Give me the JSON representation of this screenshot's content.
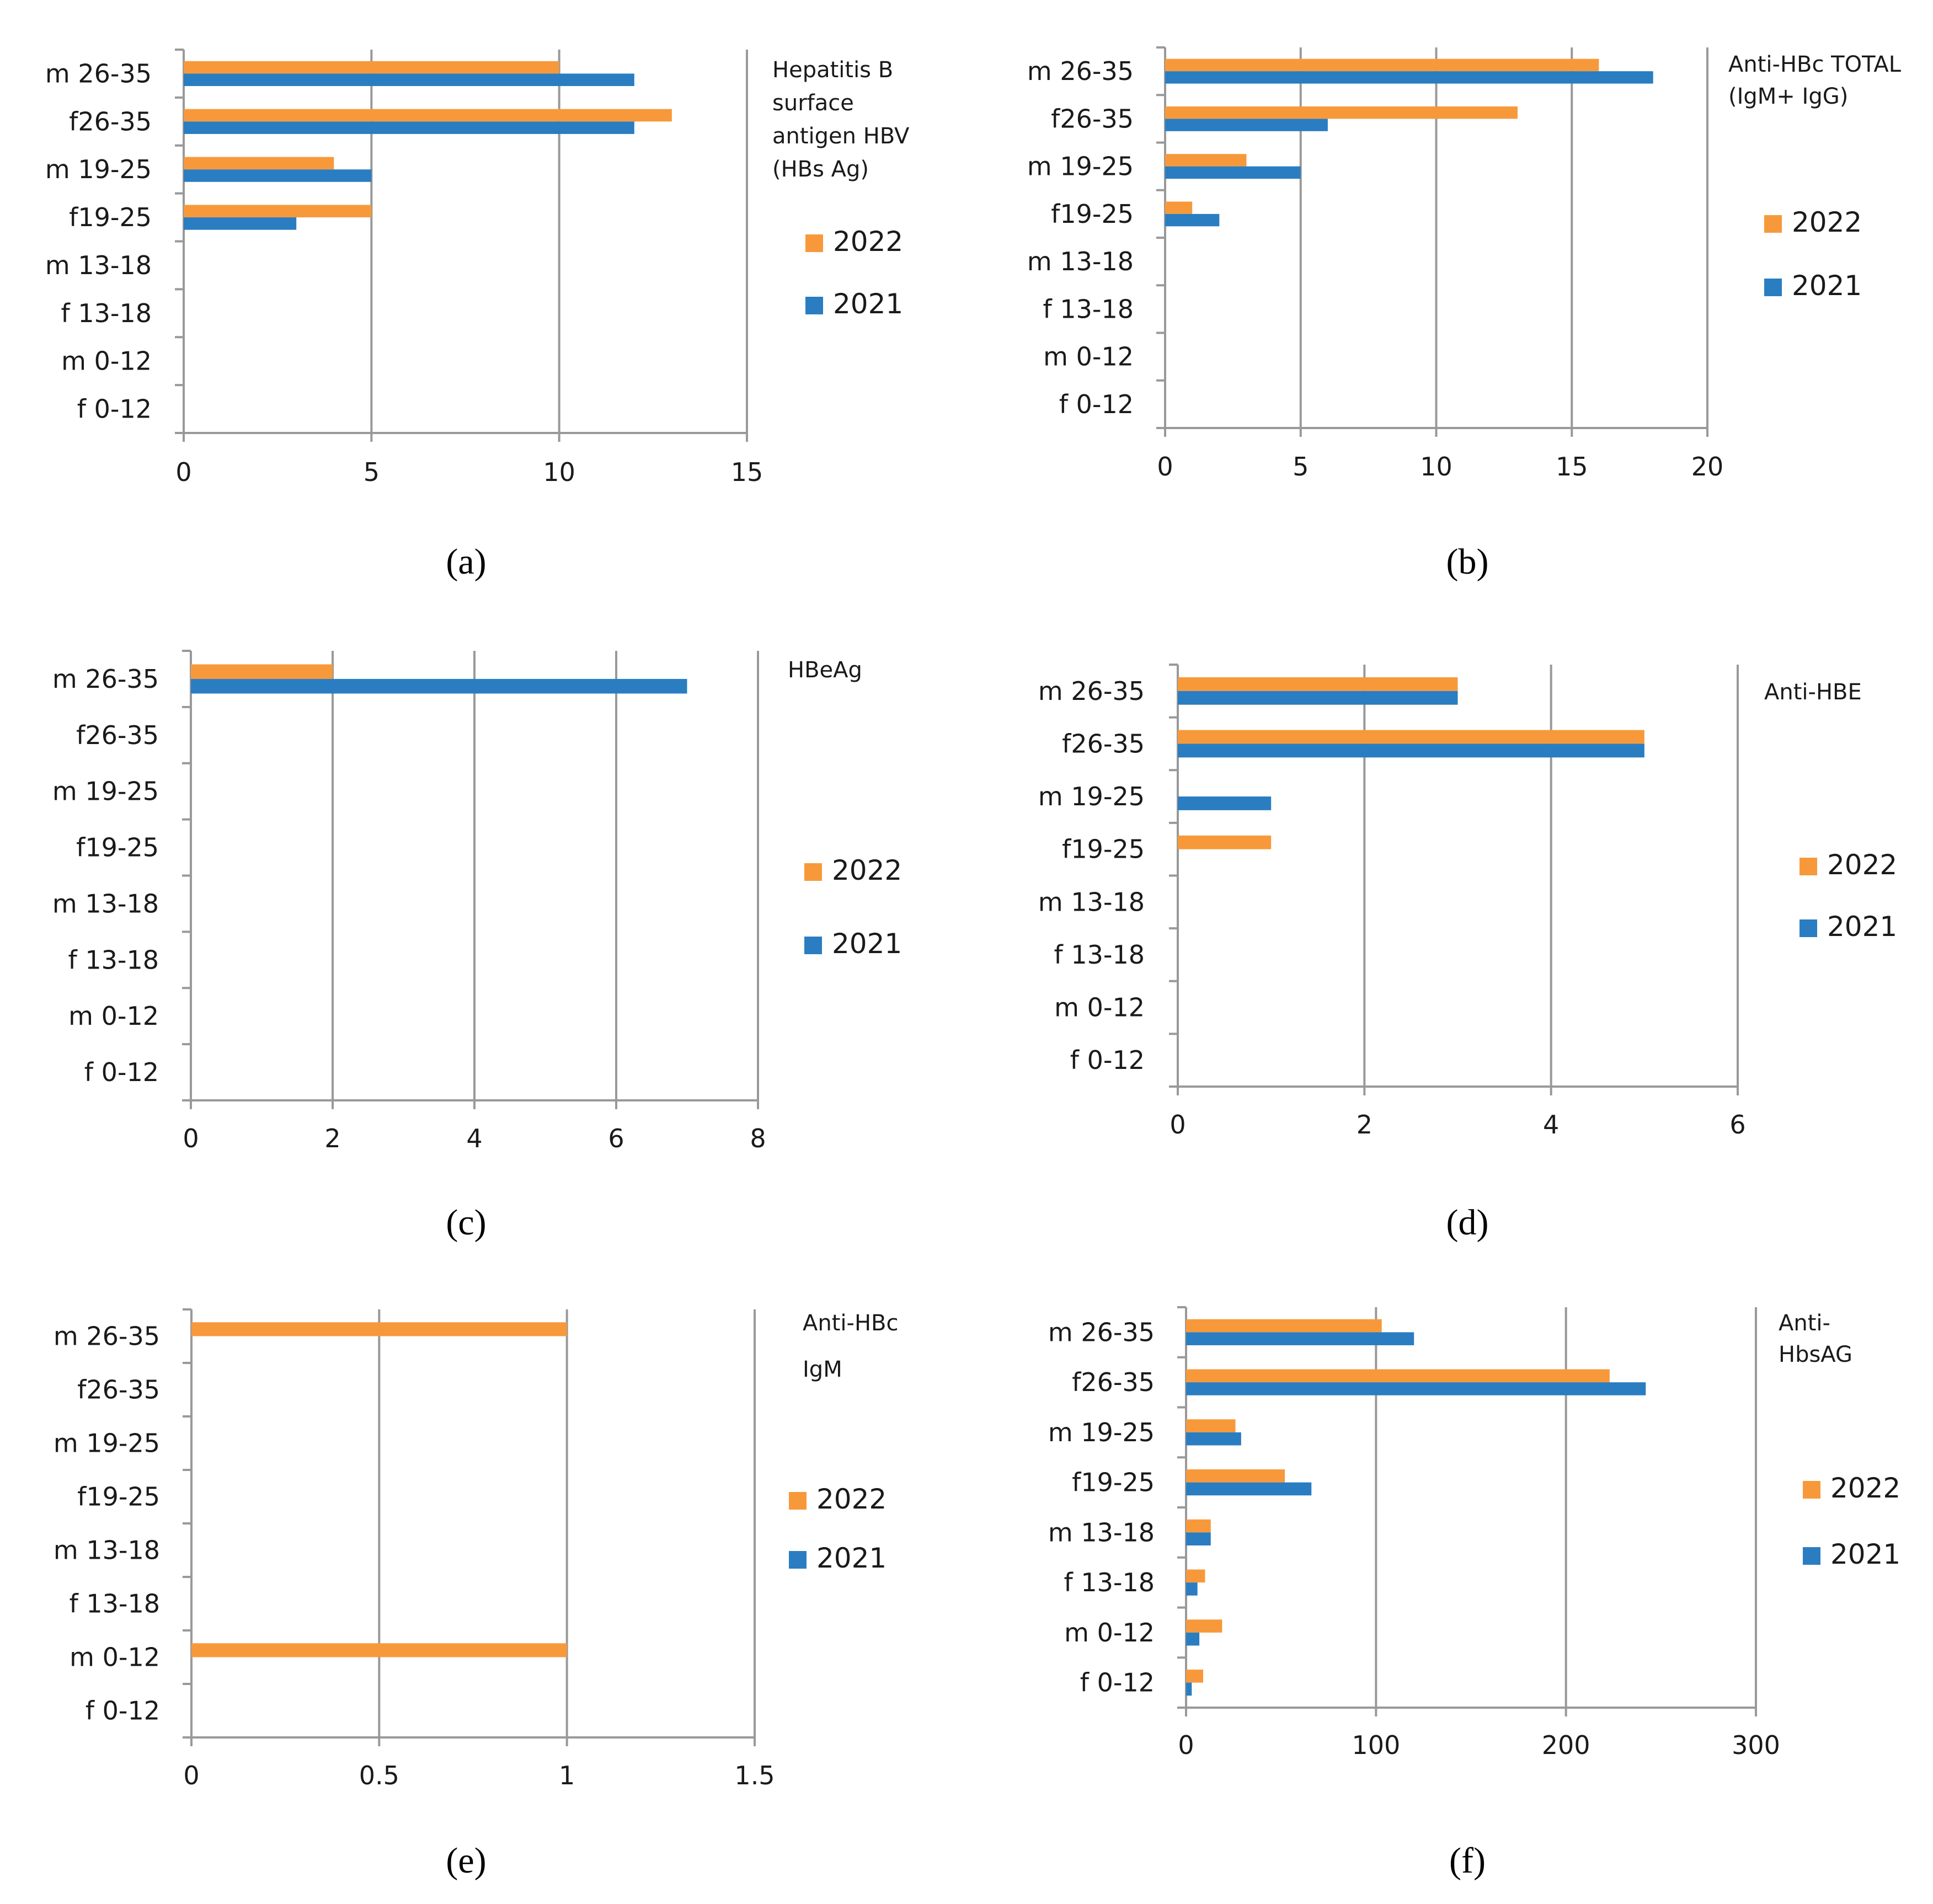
{
  "colors": {
    "series_2022": "#F7993A",
    "series_2021": "#2A7DC1",
    "grid": "#999999",
    "text": "#1a1a1a"
  },
  "chart_data": [
    {
      "id": "a",
      "caption": "(a)",
      "type": "bar",
      "orientation": "horizontal",
      "title_lines": [
        "Hepatitis B",
        "surface",
        "antigen HBV",
        "(HBs Ag)"
      ],
      "categories": [
        "m 26-35",
        "f26-35",
        "m 19-25",
        "f19-25",
        "m 13-18",
        "f 13-18",
        "m 0-12",
        "f 0-12"
      ],
      "xlim": [
        0,
        15
      ],
      "xticks": [
        0,
        5,
        10,
        15
      ],
      "xtick_labels": [
        "0",
        "5",
        "10",
        "15"
      ],
      "series": [
        {
          "name": "2022",
          "values": [
            10,
            13,
            4,
            5,
            0,
            0,
            0,
            0
          ]
        },
        {
          "name": "2021",
          "values": [
            12,
            12,
            5,
            3,
            0,
            0,
            0,
            0
          ]
        }
      ],
      "grid": true,
      "legend_position": "right"
    },
    {
      "id": "b",
      "caption": "(b)",
      "type": "bar",
      "orientation": "horizontal",
      "title_lines": [
        "Anti-HBc TOTAL",
        "(IgM+ IgG)"
      ],
      "categories": [
        "m 26-35",
        "f26-35",
        "m 19-25",
        "f19-25",
        "m 13-18",
        "f 13-18",
        "m 0-12",
        "f 0-12"
      ],
      "xlim": [
        0,
        20
      ],
      "xticks": [
        0,
        5,
        10,
        15,
        20
      ],
      "xtick_labels": [
        "0",
        "5",
        "10",
        "15",
        "20"
      ],
      "series": [
        {
          "name": "2022",
          "values": [
            16,
            13,
            3,
            1,
            0,
            0,
            0,
            0
          ]
        },
        {
          "name": "2021",
          "values": [
            18,
            6,
            5,
            2,
            0,
            0,
            0,
            0
          ]
        }
      ],
      "grid": true,
      "legend_position": "right"
    },
    {
      "id": "c",
      "caption": "(c)",
      "type": "bar",
      "orientation": "horizontal",
      "title_lines": [
        "HBeAg"
      ],
      "categories": [
        "m 26-35",
        "f26-35",
        "m 19-25",
        "f19-25",
        "m 13-18",
        "f 13-18",
        "m 0-12",
        "f 0-12"
      ],
      "xlim": [
        0,
        8
      ],
      "xticks": [
        0,
        2,
        4,
        6,
        8
      ],
      "xtick_labels": [
        "0",
        "2",
        "4",
        "6",
        "8"
      ],
      "series": [
        {
          "name": "2022",
          "values": [
            2,
            0,
            0,
            0,
            0,
            0,
            0,
            0
          ]
        },
        {
          "name": "2021",
          "values": [
            7,
            0,
            0,
            0,
            0,
            0,
            0,
            0
          ]
        }
      ],
      "grid": true,
      "legend_position": "right"
    },
    {
      "id": "d",
      "caption": "(d)",
      "type": "bar",
      "orientation": "horizontal",
      "title_lines": [
        "Anti-HBE"
      ],
      "categories": [
        "m 26-35",
        "f26-35",
        "m 19-25",
        "f19-25",
        "m 13-18",
        "f 13-18",
        "m 0-12",
        "f 0-12"
      ],
      "xlim": [
        0,
        6
      ],
      "xticks": [
        0,
        2,
        4,
        6
      ],
      "xtick_labels": [
        "0",
        "2",
        "4",
        "6"
      ],
      "series": [
        {
          "name": "2022",
          "values": [
            3,
            5,
            0,
            1,
            0,
            0,
            0,
            0
          ]
        },
        {
          "name": "2021",
          "values": [
            3,
            5,
            1,
            0,
            0,
            0,
            0,
            0
          ]
        }
      ],
      "grid": true,
      "legend_position": "right"
    },
    {
      "id": "e",
      "caption": "(e)",
      "type": "bar",
      "orientation": "horizontal",
      "title_lines": [
        "Anti-HBc",
        "IgM"
      ],
      "categories": [
        "m 26-35",
        "f26-35",
        "m 19-25",
        "f19-25",
        "m 13-18",
        "f 13-18",
        "m 0-12",
        "f 0-12"
      ],
      "xlim": [
        0,
        1.5
      ],
      "xticks": [
        0,
        0.5,
        1,
        1.5
      ],
      "xtick_labels": [
        "0",
        "0.5",
        "1",
        "1.5"
      ],
      "series": [
        {
          "name": "2022",
          "values": [
            1,
            0,
            0,
            0,
            0,
            0,
            1,
            0
          ]
        },
        {
          "name": "2021",
          "values": [
            0,
            0,
            0,
            0,
            0,
            0,
            0,
            0
          ]
        }
      ],
      "grid": true,
      "legend_position": "right"
    },
    {
      "id": "f",
      "caption": "(f)",
      "type": "bar",
      "orientation": "horizontal",
      "title_lines": [
        "Anti-",
        "HbsAG"
      ],
      "categories": [
        "m 26-35",
        "f26-35",
        "m 19-25",
        "f19-25",
        "m 13-18",
        "f 13-18",
        "m 0-12",
        "f 0-12"
      ],
      "xlim": [
        0,
        300
      ],
      "xticks": [
        0,
        100,
        200,
        300
      ],
      "xtick_labels": [
        "0",
        "100",
        "200",
        "300"
      ],
      "series": [
        {
          "name": "2022",
          "values": [
            103,
            223,
            26,
            52,
            13,
            10,
            19,
            9
          ]
        },
        {
          "name": "2021",
          "values": [
            120,
            242,
            29,
            66,
            13,
            6,
            7,
            3
          ]
        }
      ],
      "grid": true,
      "legend_position": "right"
    }
  ]
}
